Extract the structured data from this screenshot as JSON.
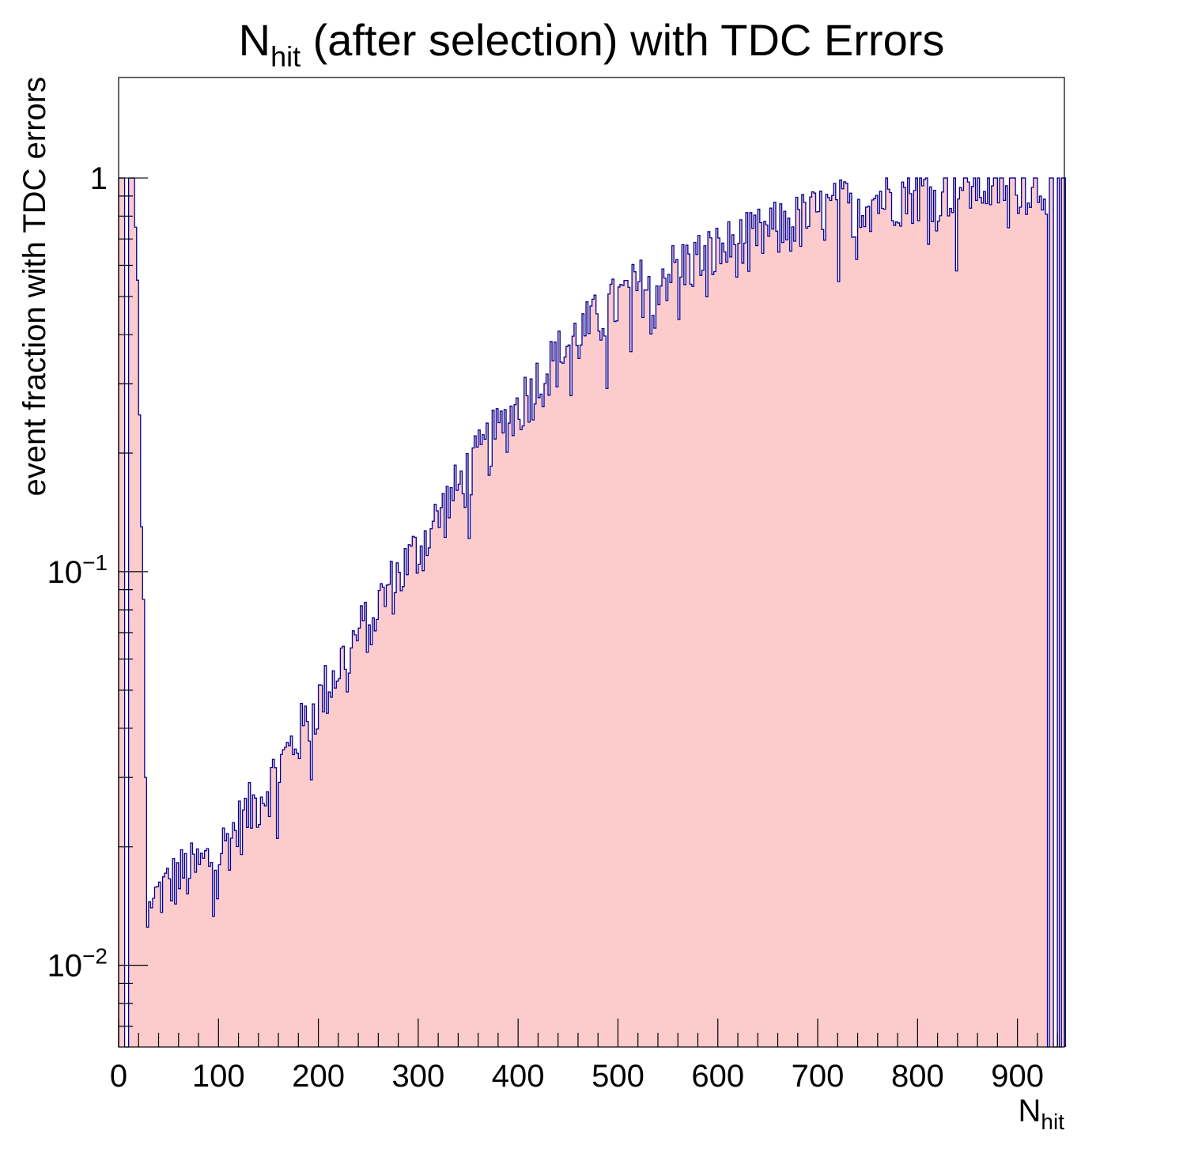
{
  "chart_data": {
    "type": "bar",
    "title": {
      "main": "N",
      "sub": "hit",
      "rest": " (after selection) with TDC Errors"
    },
    "xlabel": {
      "main": "N",
      "sub": "hit"
    },
    "ylabel": "event fraction with TDC errors",
    "xlim": [
      0,
      947
    ],
    "ylim": [
      0.0062,
      1.8
    ],
    "yscale": "log",
    "grid": false,
    "x_ticks": [
      "0",
      "100",
      "200",
      "300",
      "400",
      "500",
      "600",
      "700",
      "800",
      "900"
    ],
    "y_ticks": [
      {
        "value": 1,
        "base": "1",
        "exp": ""
      },
      {
        "value": 0.1,
        "base": "10",
        "exp": "−1"
      },
      {
        "value": 0.01,
        "base": "10",
        "exp": "−2"
      }
    ],
    "bin_width": 2,
    "series": [
      {
        "fill_color": "#fccbcc",
        "line_color": "#000099",
        "bins": [
          [
            0,
            1
          ],
          [
            2,
            1
          ],
          [
            4,
            1
          ],
          [
            6,
            0.004
          ],
          [
            8,
            0.004
          ],
          [
            10,
            1
          ],
          [
            12,
            1
          ],
          [
            14,
            1
          ],
          [
            16,
            0.75
          ],
          [
            18,
            0.55
          ],
          [
            20,
            0.25
          ],
          [
            22,
            0.13
          ],
          [
            24,
            0.085
          ],
          [
            26,
            0.03
          ],
          [
            28,
            0.0125
          ],
          [
            30,
            0.0145
          ],
          [
            32,
            0.014
          ],
          [
            34,
            0.0148
          ]
        ],
        "anchors": [
          [
            34,
            0.0148
          ],
          [
            60,
            0.017
          ],
          [
            80,
            0.0178
          ],
          [
            100,
            0.0195
          ],
          [
            120,
            0.0228
          ],
          [
            150,
            0.029
          ],
          [
            175,
            0.037
          ],
          [
            200,
            0.047
          ],
          [
            225,
            0.061
          ],
          [
            250,
            0.076
          ],
          [
            275,
            0.095
          ],
          [
            300,
            0.115
          ],
          [
            325,
            0.145
          ],
          [
            350,
            0.18
          ],
          [
            375,
            0.22
          ],
          [
            400,
            0.265
          ],
          [
            425,
            0.32
          ],
          [
            450,
            0.38
          ],
          [
            475,
            0.43
          ],
          [
            500,
            0.49
          ],
          [
            525,
            0.54
          ],
          [
            550,
            0.58
          ],
          [
            575,
            0.62
          ],
          [
            600,
            0.655
          ],
          [
            625,
            0.69
          ],
          [
            650,
            0.73
          ],
          [
            675,
            0.77
          ],
          [
            700,
            0.81
          ],
          [
            725,
            0.85
          ],
          [
            750,
            0.88
          ],
          [
            775,
            0.91
          ],
          [
            800,
            0.93
          ],
          [
            825,
            0.945
          ],
          [
            850,
            0.96
          ],
          [
            875,
            0.97
          ],
          [
            900,
            0.975
          ],
          [
            930,
            0.98
          ]
        ],
        "tail_bins": [
          [
            930,
            0.004
          ],
          [
            932,
            1
          ],
          [
            934,
            1
          ],
          [
            936,
            0.004
          ],
          [
            938,
            0.004
          ],
          [
            940,
            1
          ],
          [
            942,
            0.004
          ],
          [
            944,
            1
          ],
          [
            946,
            1
          ]
        ]
      }
    ]
  }
}
